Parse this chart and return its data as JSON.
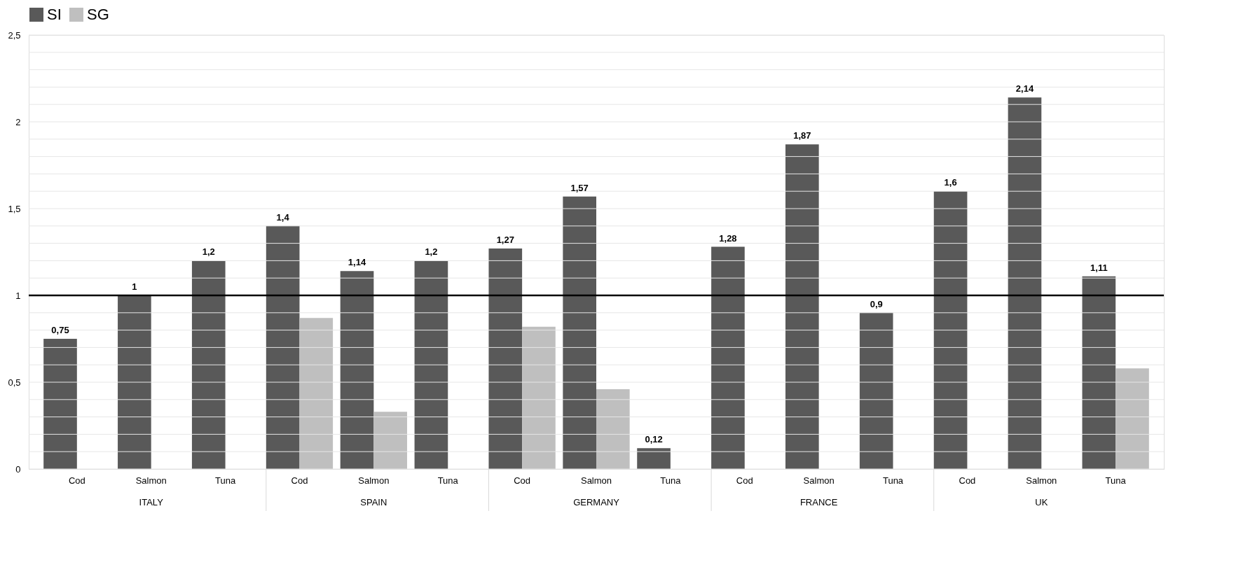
{
  "chart_data": {
    "type": "bar",
    "categories": [
      "Cod",
      "Salmon",
      "Tuna",
      "Cod",
      "Salmon",
      "Tuna",
      "Cod",
      "Salmon",
      "Tuna",
      "Cod",
      "Salmon",
      "Tuna",
      "Cod",
      "Salmon",
      "Tuna"
    ],
    "series": [
      {
        "name": "SI",
        "color": "#595959",
        "values": [
          0.75,
          1,
          1.2,
          1.4,
          1.14,
          1.2,
          1.27,
          1.57,
          0.12,
          1.28,
          1.87,
          0.9,
          1.6,
          2.14,
          1.11
        ],
        "value_labels": [
          "0,75",
          "1",
          "1,2",
          "1,4",
          "1,14",
          "1,2",
          "1,27",
          "1,57",
          "0,12",
          "1,28",
          "1,87",
          "0,9",
          "1,6",
          "2,14",
          "1,11"
        ]
      },
      {
        "name": "SG",
        "color": "#bfbfbf",
        "values": [
          null,
          null,
          null,
          0.87,
          0.33,
          null,
          0.82,
          0.46,
          null,
          null,
          null,
          null,
          null,
          null,
          0.58
        ]
      }
    ],
    "annotations": [
      "ITALY",
      "SPAIN",
      "GERMANY",
      "FRANCE",
      "UK"
    ],
    "ylim": [
      0,
      2.5
    ],
    "yticks": [
      0,
      {
        "value": 0.1,
        "label": null
      },
      {
        "value": 0.2,
        "label": null
      },
      {
        "value": 0.3,
        "label": null
      },
      {
        "value": 0.4,
        "label": null
      },
      {
        "value": 0.5,
        "label": "0,5"
      },
      {
        "value": 0.6,
        "label": null
      },
      {
        "value": 0.7,
        "label": null
      },
      {
        "value": 0.8,
        "label": null
      },
      {
        "value": 0.9,
        "label": null
      },
      1,
      {
        "value": 1.1,
        "label": null
      },
      {
        "value": 1.2,
        "label": null
      },
      {
        "value": 1.3,
        "label": null
      },
      {
        "value": 1.4,
        "label": null
      },
      {
        "value": 1.5,
        "label": "1,5"
      },
      {
        "value": 1.6,
        "label": null
      },
      {
        "value": 1.7,
        "label": null
      },
      {
        "value": 1.8,
        "label": null
      },
      {
        "value": 1.9,
        "label": null
      },
      2,
      {
        "value": 2.1,
        "label": null
      },
      {
        "value": 2.2,
        "label": null
      },
      {
        "value": 2.3,
        "label": null
      },
      {
        "value": 2.4,
        "label": null
      },
      {
        "value": 2.5,
        "label": "2,5"
      }
    ],
    "ref_lines": [
      {
        "axis": "y",
        "value": 1,
        "color": "#000000"
      }
    ],
    "grid": "y",
    "legend": "top"
  }
}
